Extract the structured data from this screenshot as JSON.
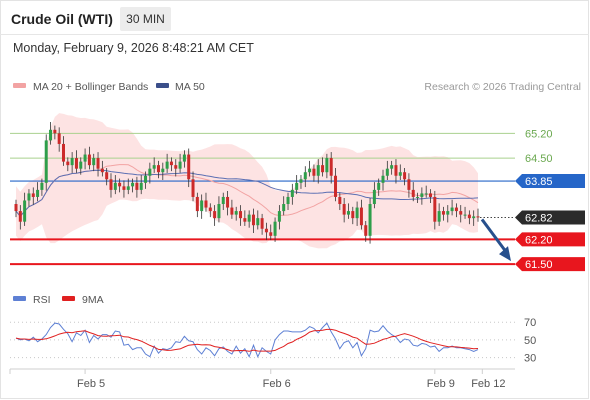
{
  "header": {
    "title": "Crude Oil (WTI)",
    "timeframe": "30 MIN",
    "datetime": "Monday, February 9, 2026 8:48:21 AM CET"
  },
  "legend": {
    "ma20": "MA 20 + Bollinger Bands",
    "ma50": "MA 50",
    "rsi": "RSI",
    "ma9": "9MA",
    "copyright": "Research © 2026 Trading Central"
  },
  "colors": {
    "candle_up": "#2e9e4a",
    "candle_down": "#cc2a2a",
    "bollinger_fill": "#fde3e3",
    "ma20": "#f2a3a3",
    "ma50": "#5b6fb3",
    "resistance": "#a9d18e",
    "pivot": "#2666c8",
    "support": "#e8161e",
    "current": "#2b2b2b",
    "rsi": "#5e80d4",
    "rsi_ma": "#e02020",
    "arrow": "#27508d"
  },
  "chart_data": [
    {
      "type": "candlestick",
      "x_ticks": [
        "Feb 5",
        "Feb 6",
        "Feb 9",
        "Feb 12"
      ],
      "ylim": [
        61.05,
        66.2
      ],
      "grid": false,
      "legend_position": "top-left",
      "levels": [
        {
          "value": 65.2,
          "label": "65.20",
          "kind": "resistance"
        },
        {
          "value": 64.5,
          "label": "64.50",
          "kind": "resistance"
        },
        {
          "value": 63.85,
          "label": "63.85",
          "kind": "pivot"
        },
        {
          "value": 62.82,
          "label": "62.82",
          "kind": "current"
        },
        {
          "value": 62.2,
          "label": "62.20",
          "kind": "support"
        },
        {
          "value": 61.5,
          "label": "61.50",
          "kind": "support"
        }
      ],
      "projection": {
        "from": 62.82,
        "to": 61.5
      },
      "close": [
        63.0,
        62.7,
        63.3,
        63.5,
        63.4,
        63.6,
        63.8,
        65.0,
        65.3,
        65.2,
        64.9,
        64.4,
        64.3,
        64.5,
        64.2,
        64.4,
        64.6,
        64.3,
        64.5,
        64.2,
        64.1,
        63.9,
        63.6,
        63.8,
        63.7,
        63.6,
        63.7,
        63.8,
        63.6,
        63.8,
        64.0,
        64.2,
        64.3,
        64.1,
        64.2,
        64.4,
        64.3,
        64.2,
        64.4,
        64.6,
        63.9,
        63.4,
        63.0,
        63.3,
        63.1,
        63.0,
        62.8,
        63.2,
        63.4,
        63.1,
        62.9,
        63.0,
        62.8,
        62.7,
        62.9,
        62.6,
        62.8,
        62.5,
        62.4,
        62.3,
        62.7,
        63.0,
        63.2,
        63.4,
        63.6,
        63.8,
        63.9,
        64.1,
        64.2,
        64.0,
        64.3,
        64.1,
        64.5,
        64.0,
        63.4,
        63.2,
        62.9,
        63.0,
        62.8,
        63.1,
        62.6,
        62.3,
        63.2,
        63.6,
        63.8,
        64.0,
        64.2,
        64.3,
        64.0,
        64.1,
        63.9,
        63.6,
        63.4,
        63.4,
        63.5,
        63.5,
        63.4,
        62.7,
        63.0,
        62.9,
        63.0,
        63.1,
        63.0,
        62.9,
        62.9,
        62.8,
        62.85,
        62.82
      ],
      "x_tick_index": [
        16,
        59,
        97,
        108
      ]
    },
    {
      "type": "line",
      "name": "RSI",
      "yticks": [
        70,
        50,
        30
      ],
      "ylim": [
        25,
        77
      ],
      "values": [
        52,
        50,
        51,
        49,
        53,
        48,
        51,
        56,
        64,
        69,
        68,
        62,
        57,
        48,
        58,
        55,
        61,
        47,
        55,
        51,
        56,
        56,
        53,
        60,
        59,
        44,
        45,
        39,
        41,
        41,
        34,
        31,
        43,
        35,
        40,
        39,
        41,
        48,
        47,
        54,
        49,
        48,
        39,
        34,
        41,
        38,
        32,
        40,
        42,
        37,
        34,
        43,
        35,
        40,
        31,
        44,
        31,
        41,
        37,
        34,
        50,
        56,
        60,
        60,
        59,
        59,
        59,
        61,
        65,
        63,
        58,
        64,
        69,
        59,
        51,
        40,
        47,
        49,
        41,
        47,
        32,
        40,
        61,
        59,
        60,
        66,
        60,
        56,
        53,
        47,
        51,
        50,
        44,
        43,
        46,
        45,
        42,
        43,
        37,
        41,
        41,
        43,
        41,
        41,
        40,
        39,
        37,
        39
      ]
    }
  ]
}
